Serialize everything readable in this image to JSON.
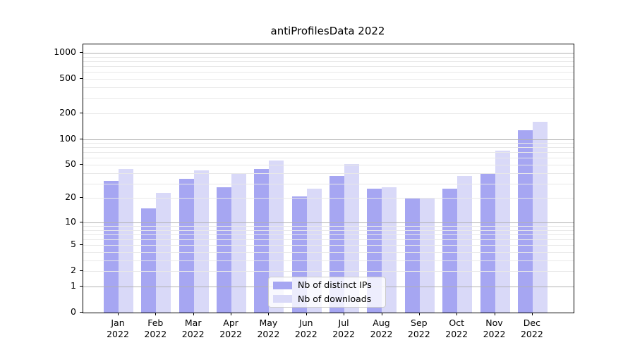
{
  "title": "antiProfilesData 2022",
  "legend": {
    "items": [
      {
        "label": "Nb of distinct IPs",
        "color": "#a6a6f2"
      },
      {
        "label": "Nb of downloads",
        "color": "#d9d9f8"
      }
    ]
  },
  "colors": {
    "bar_distinct_ips": "#a6a6f2",
    "bar_downloads": "#d9d9f8",
    "grid_major": "#b0b0b0",
    "grid_minor": "#e8e8e8",
    "axis": "#000000",
    "legend_border": "#cccccc"
  },
  "chart_data": {
    "type": "bar",
    "title": "antiProfilesData 2022",
    "categories": [
      "Jan",
      "Feb",
      "Mar",
      "Apr",
      "May",
      "Jun",
      "Jul",
      "Aug",
      "Sep",
      "Oct",
      "Nov",
      "Dec"
    ],
    "year_label": "2022",
    "series": [
      {
        "name": "Nb of distinct IPs",
        "color": "#a6a6f2",
        "values": [
          32,
          15,
          34,
          27,
          45,
          21,
          37,
          26,
          20,
          26,
          40,
          127
        ]
      },
      {
        "name": "Nb of downloads",
        "color": "#d9d9f8",
        "values": [
          45,
          23,
          43,
          40,
          56,
          26,
          51,
          27,
          20,
          37,
          73,
          158
        ]
      }
    ],
    "xlabel": "",
    "ylabel": "",
    "yscale": "log1p",
    "y_ticks": [
      0,
      1,
      2,
      5,
      10,
      20,
      50,
      100,
      200,
      500,
      1000
    ],
    "y_major_grid_ticks": [
      1,
      10,
      100,
      1000
    ],
    "ylim": [
      0,
      1240
    ],
    "grid": "both",
    "legend_position": "lower center"
  }
}
